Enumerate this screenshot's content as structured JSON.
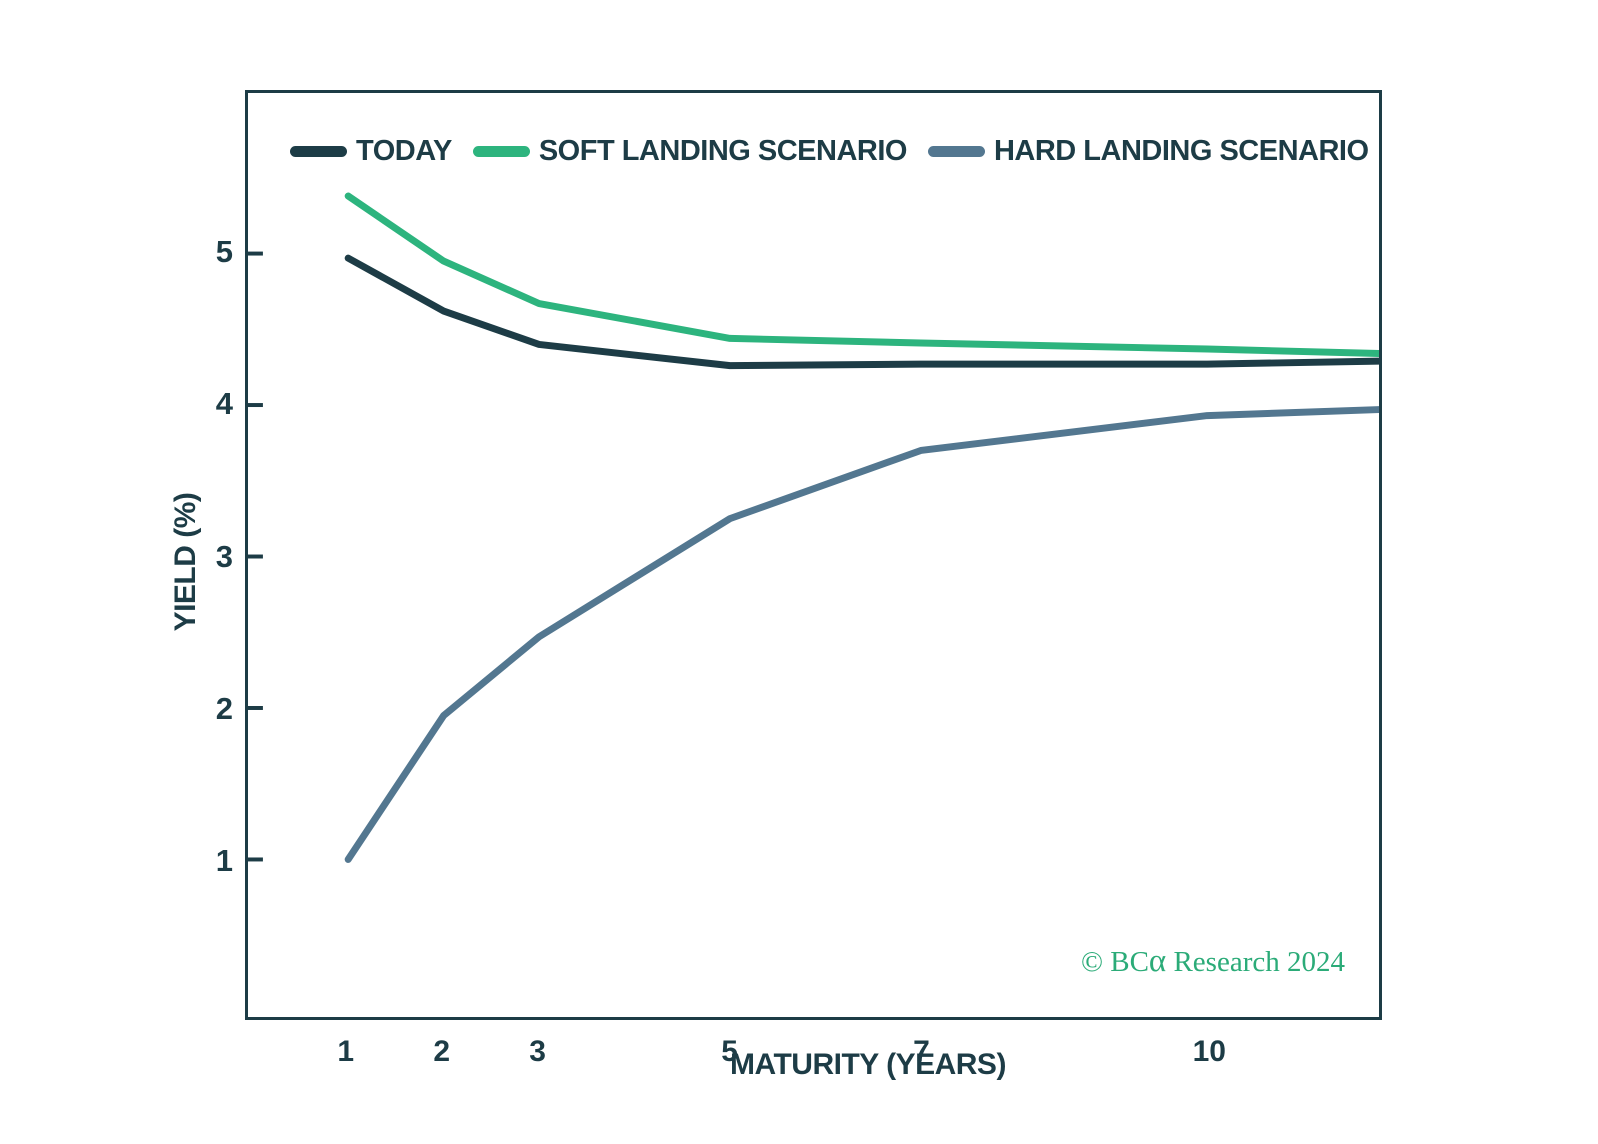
{
  "chart_data": {
    "type": "line",
    "title": "",
    "xlabel": "MATURITY (YEARS)",
    "ylabel": "YIELD (%)",
    "x_ticks": [
      1,
      2,
      3,
      5,
      7,
      10
    ],
    "y_ticks": [
      1,
      2,
      3,
      4,
      5
    ],
    "x_range": [
      -0.05,
      11.8
    ],
    "y_range": [
      -0.04,
      6.06
    ],
    "grid": false,
    "legend_position": "top-inside",
    "axis_color": "#1d3c46",
    "line_width": 7,
    "series": [
      {
        "name": "TODAY",
        "color": "#1d3c46",
        "x": [
          1,
          2,
          3,
          5,
          7,
          10,
          11.8
        ],
        "values": [
          4.97,
          4.62,
          4.4,
          4.26,
          4.27,
          4.27,
          4.29
        ]
      },
      {
        "name": "SOFT LANDING SCENARIO",
        "color": "#2db47e",
        "x": [
          1,
          2,
          3,
          5,
          7,
          10,
          11.8
        ],
        "values": [
          5.38,
          4.95,
          4.67,
          4.44,
          4.41,
          4.37,
          4.34
        ]
      },
      {
        "name": "HARD LANDING SCENARIO",
        "color": "#537790",
        "x": [
          1,
          2,
          3,
          5,
          7,
          10,
          11.8
        ],
        "values": [
          1.0,
          1.95,
          2.47,
          3.25,
          3.7,
          3.93,
          3.97
        ]
      }
    ]
  },
  "footer": {
    "copyright_prefix": "© BC",
    "copyright_alpha": "α",
    "copyright_suffix": " Research 2024",
    "color": "#2bab78"
  }
}
